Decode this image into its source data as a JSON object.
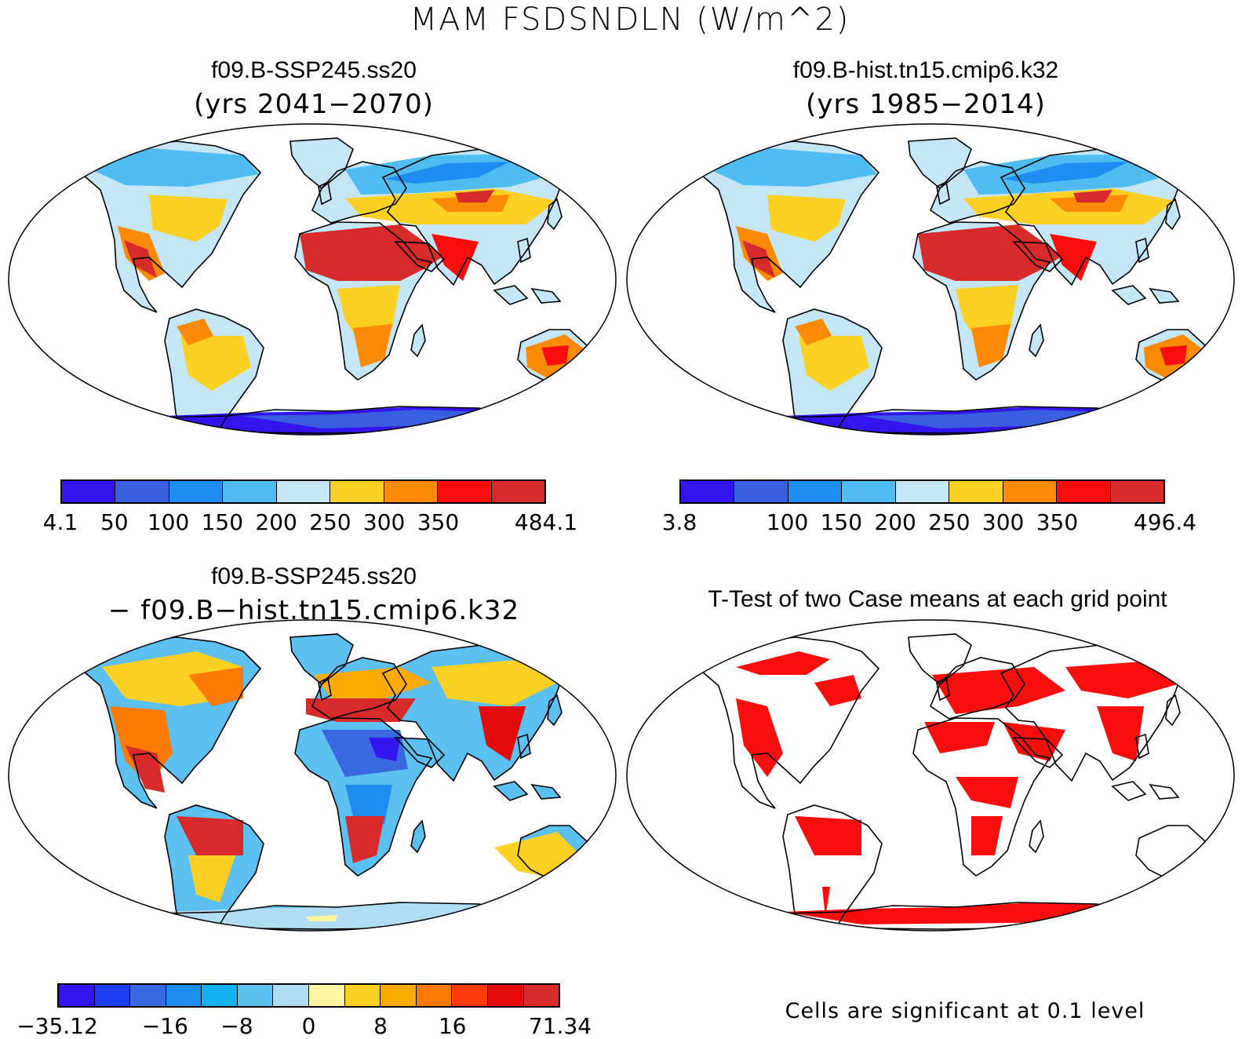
{
  "title": "MAM FSDSNDLN (W/m^2)",
  "panels": [
    {
      "id": "tl",
      "title": "f09.B-SSP245.ss20",
      "subtitle": "(yrs 2041−2070)"
    },
    {
      "id": "tr",
      "title": "f09.B-hist.tn15.cmip6.k32",
      "subtitle": "(yrs 1985−2014)"
    },
    {
      "id": "bl",
      "title": "f09.B-SSP245.ss20",
      "subtitle": "− f09.B−hist.tn15.cmip6.k32"
    },
    {
      "id": "br",
      "title": "T-Test of two Case means at each grid point",
      "subtitle": ""
    }
  ],
  "colorbars": {
    "tl": {
      "colors": [
        "#3314ee",
        "#3a5ee0",
        "#1e8cf0",
        "#4fbcf2",
        "#c4e6f7",
        "#fdd024",
        "#fd8a05",
        "#f90d0d",
        "#d72b2b"
      ],
      "ticks": [
        {
          "pos": 0,
          "label": "4.1"
        },
        {
          "pos": 1,
          "label": "50"
        },
        {
          "pos": 2,
          "label": "100"
        },
        {
          "pos": 3,
          "label": "150"
        },
        {
          "pos": 4,
          "label": "200"
        },
        {
          "pos": 5,
          "label": "250"
        },
        {
          "pos": 6,
          "label": "300"
        },
        {
          "pos": 7,
          "label": "350"
        },
        {
          "pos": 9,
          "label": "484.1"
        }
      ]
    },
    "tr": {
      "colors": [
        "#3314ee",
        "#3a5ee0",
        "#1e8cf0",
        "#4fbcf2",
        "#c4e6f7",
        "#fdd024",
        "#fd8a05",
        "#f90d0d",
        "#d72b2b"
      ],
      "ticks": [
        {
          "pos": 0,
          "label": "3.8"
        },
        {
          "pos": 2,
          "label": "100"
        },
        {
          "pos": 3,
          "label": "150"
        },
        {
          "pos": 4,
          "label": "200"
        },
        {
          "pos": 5,
          "label": "250"
        },
        {
          "pos": 6,
          "label": "300"
        },
        {
          "pos": 7,
          "label": "350"
        },
        {
          "pos": 9,
          "label": "496.4"
        }
      ]
    },
    "bl": {
      "colors": [
        "#3314ee",
        "#1d3ef0",
        "#3a68de",
        "#1e8cf0",
        "#14b0f0",
        "#5cc0f0",
        "#b0dcf4",
        "#fff4a0",
        "#fdd024",
        "#fdaa05",
        "#fd7a05",
        "#ff3a0d",
        "#e30b0b",
        "#d72b2b"
      ],
      "ticks": [
        {
          "pos": 0,
          "label": "−35.12"
        },
        {
          "pos": 3,
          "label": "−16"
        },
        {
          "pos": 5,
          "label": "−8"
        },
        {
          "pos": 7,
          "label": "0"
        },
        {
          "pos": 9,
          "label": "8"
        },
        {
          "pos": 11,
          "label": "16"
        },
        {
          "pos": 14,
          "label": "71.34"
        }
      ]
    }
  },
  "footnote": "Cells are significant at 0.1 level",
  "map_colors": {
    "outline": "#000000",
    "antarctica_abs": "#3314ee",
    "antarctica_abs_edge": "#3a5ee0",
    "antarctica_diff": "#b0dcf4",
    "significant": "#f90d0d"
  }
}
